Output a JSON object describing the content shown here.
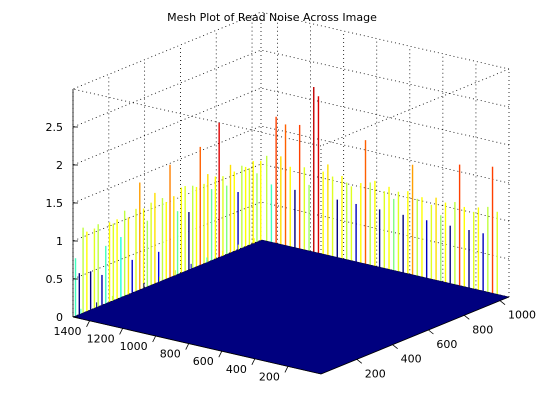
{
  "chart_data": {
    "type": "mesh3d",
    "title": "Mesh Plot of Read Noise Across Image",
    "zlim": [
      0,
      3
    ],
    "z_ticks": [
      0,
      0.5,
      1,
      1.5,
      2,
      2.5
    ],
    "x_ticks": [
      200,
      400,
      600,
      800,
      1000,
      1200,
      1400
    ],
    "y_ticks": [
      200,
      400,
      600,
      800,
      1000
    ],
    "x_range": [
      0,
      1500
    ],
    "y_range": [
      0,
      1050
    ],
    "grid": true,
    "base_color": "#00007f",
    "spikes": [
      {
        "x": 1480,
        "z": 1.05,
        "color": "#40ffbf"
      },
      {
        "x": 1450,
        "z": 0.75,
        "color": "#00007f"
      },
      {
        "x": 1420,
        "z": 1.55,
        "color": "#bfff40"
      },
      {
        "x": 1390,
        "z": 1.45,
        "color": "#ffff00"
      },
      {
        "x": 1360,
        "z": 0.7,
        "color": "#00007f"
      },
      {
        "x": 1330,
        "z": 1.45,
        "color": "#dfff20"
      },
      {
        "x": 1300,
        "z": 1.5,
        "color": "#bfff40"
      },
      {
        "x": 1270,
        "z": 0.55,
        "color": "#0000af"
      },
      {
        "x": 1240,
        "z": 1.05,
        "color": "#40ffbf"
      },
      {
        "x": 1210,
        "z": 1.45,
        "color": "#ffff00"
      },
      {
        "x": 1180,
        "z": 1.4,
        "color": "#dfff20"
      },
      {
        "x": 1150,
        "z": 1.45,
        "color": "#ffff00"
      },
      {
        "x": 1120,
        "z": 1.1,
        "color": "#20ffdf"
      },
      {
        "x": 1090,
        "z": 1.55,
        "color": "#bfff40"
      },
      {
        "x": 1060,
        "z": 1.4,
        "color": "#ffdf00"
      },
      {
        "x": 1030,
        "z": 0.6,
        "color": "#0000cf"
      },
      {
        "x": 1000,
        "z": 1.5,
        "color": "#dfff20"
      },
      {
        "x": 970,
        "z": 1.95,
        "color": "#ff9f00"
      },
      {
        "x": 940,
        "z": 1.45,
        "color": "#ffff00"
      },
      {
        "x": 910,
        "z": 1.2,
        "color": "#9fff60"
      },
      {
        "x": 880,
        "z": 1.5,
        "color": "#dfff20"
      },
      {
        "x": 850,
        "z": 1.65,
        "color": "#ffdf00"
      },
      {
        "x": 820,
        "z": 0.55,
        "color": "#0000ef"
      },
      {
        "x": 790,
        "z": 1.5,
        "color": "#bfff40"
      },
      {
        "x": 760,
        "z": 1.4,
        "color": "#ffff00"
      },
      {
        "x": 730,
        "z": 2.05,
        "color": "#ff8000"
      },
      {
        "x": 700,
        "z": 1.45,
        "color": "#ffdf00"
      },
      {
        "x": 670,
        "z": 1.15,
        "color": "#60ff9f"
      },
      {
        "x": 640,
        "z": 1.55,
        "color": "#ffff00"
      },
      {
        "x": 610,
        "z": 1.55,
        "color": "#dfff20"
      },
      {
        "x": 580,
        "z": 1.05,
        "color": "#00007f"
      },
      {
        "x": 550,
        "z": 1.5,
        "color": "#bfff40"
      },
      {
        "x": 520,
        "z": 1.45,
        "color": "#ffff00"
      },
      {
        "x": 490,
        "z": 2.15,
        "color": "#ff6000"
      },
      {
        "x": 460,
        "z": 1.45,
        "color": "#dfff20"
      },
      {
        "x": 430,
        "z": 1.6,
        "color": "#ffdf00"
      },
      {
        "x": 400,
        "z": 1.3,
        "color": "#60ff9f"
      },
      {
        "x": 370,
        "z": 1.5,
        "color": "#ffff00"
      },
      {
        "x": 340,
        "z": 2.45,
        "color": "#df0000"
      },
      {
        "x": 310,
        "z": 1.45,
        "color": "#dfff20"
      },
      {
        "x": 280,
        "z": 1.25,
        "color": "#80ff80"
      },
      {
        "x": 250,
        "z": 1.6,
        "color": "#ffdf00"
      },
      {
        "x": 220,
        "z": 1.45,
        "color": "#ffff00"
      },
      {
        "x": 190,
        "z": 1.05,
        "color": "#0000bf"
      },
      {
        "x": 160,
        "z": 1.5,
        "color": "#bfff40"
      },
      {
        "x": 130,
        "z": 1.45,
        "color": "#ffff00"
      },
      {
        "x": 100,
        "z": 1.4,
        "color": "#dfff20"
      },
      {
        "x": 70,
        "z": 1.5,
        "color": "#ffff00"
      },
      {
        "x": 40,
        "z": 1.25,
        "color": "#9fff60"
      },
      {
        "x": 10,
        "z": 1.45,
        "color": "#ffff00"
      }
    ],
    "spikes_right": [
      {
        "y": 20,
        "z": 1.55,
        "color": "#bfff40"
      },
      {
        "y": 40,
        "z": 1.05,
        "color": "#40ffbf"
      },
      {
        "y": 60,
        "z": 2.3,
        "color": "#ff4000"
      },
      {
        "y": 80,
        "z": 1.6,
        "color": "#ffdf00"
      },
      {
        "y": 100,
        "z": 2.2,
        "color": "#ff6000"
      },
      {
        "y": 120,
        "z": 1.45,
        "color": "#ffff00"
      },
      {
        "y": 140,
        "z": 1.05,
        "color": "#00007f"
      },
      {
        "y": 160,
        "z": 2.25,
        "color": "#ff4000"
      },
      {
        "y": 180,
        "z": 1.5,
        "color": "#dfff20"
      },
      {
        "y": 200,
        "z": 1.2,
        "color": "#9fff60"
      },
      {
        "y": 220,
        "z": 3.0,
        "color": "#bf0000"
      },
      {
        "y": 240,
        "z": 2.85,
        "color": "#df0000"
      },
      {
        "y": 260,
        "z": 1.5,
        "color": "#ffff00"
      },
      {
        "y": 280,
        "z": 1.65,
        "color": "#ffdf00"
      },
      {
        "y": 300,
        "z": 1.45,
        "color": "#dfff20"
      },
      {
        "y": 320,
        "z": 1.05,
        "color": "#00007f"
      },
      {
        "y": 340,
        "z": 1.5,
        "color": "#ffff00"
      },
      {
        "y": 360,
        "z": 1.4,
        "color": "#bfff40"
      },
      {
        "y": 380,
        "z": 1.35,
        "color": "#dfff20"
      },
      {
        "y": 400,
        "z": 1.05,
        "color": "#0000bf"
      },
      {
        "y": 420,
        "z": 1.45,
        "color": "#ffff00"
      },
      {
        "y": 440,
        "z": 2.25,
        "color": "#ff6000"
      },
      {
        "y": 460,
        "z": 1.5,
        "color": "#bfff40"
      },
      {
        "y": 480,
        "z": 1.55,
        "color": "#ffff00"
      },
      {
        "y": 500,
        "z": 1.05,
        "color": "#00007f"
      },
      {
        "y": 520,
        "z": 1.4,
        "color": "#dfff20"
      },
      {
        "y": 540,
        "z": 1.5,
        "color": "#ffff00"
      },
      {
        "y": 560,
        "z": 1.3,
        "color": "#80ff80"
      },
      {
        "y": 580,
        "z": 1.45,
        "color": "#dfff20"
      },
      {
        "y": 600,
        "z": 1.05,
        "color": "#00007f"
      },
      {
        "y": 620,
        "z": 1.5,
        "color": "#ffff00"
      },
      {
        "y": 640,
        "z": 2.0,
        "color": "#ff9f00"
      },
      {
        "y": 660,
        "z": 1.4,
        "color": "#bfff40"
      },
      {
        "y": 680,
        "z": 1.45,
        "color": "#ffff00"
      },
      {
        "y": 700,
        "z": 1.05,
        "color": "#0000bf"
      },
      {
        "y": 720,
        "z": 1.35,
        "color": "#dfff20"
      },
      {
        "y": 740,
        "z": 1.5,
        "color": "#ffdf00"
      },
      {
        "y": 760,
        "z": 1.2,
        "color": "#9fff60"
      },
      {
        "y": 780,
        "z": 1.45,
        "color": "#ffff00"
      },
      {
        "y": 800,
        "z": 1.05,
        "color": "#00007f"
      },
      {
        "y": 820,
        "z": 1.5,
        "color": "#bfff40"
      },
      {
        "y": 840,
        "z": 2.2,
        "color": "#ff4000"
      },
      {
        "y": 860,
        "z": 1.45,
        "color": "#ffff00"
      },
      {
        "y": 880,
        "z": 1.05,
        "color": "#00007f"
      },
      {
        "y": 900,
        "z": 1.4,
        "color": "#dfff20"
      },
      {
        "y": 920,
        "z": 1.5,
        "color": "#ffff00"
      },
      {
        "y": 940,
        "z": 1.05,
        "color": "#0000bf"
      },
      {
        "y": 960,
        "z": 1.55,
        "color": "#bfff40"
      },
      {
        "y": 980,
        "z": 2.3,
        "color": "#ff4000"
      },
      {
        "y": 1000,
        "z": 1.5,
        "color": "#dfff20"
      }
    ]
  }
}
